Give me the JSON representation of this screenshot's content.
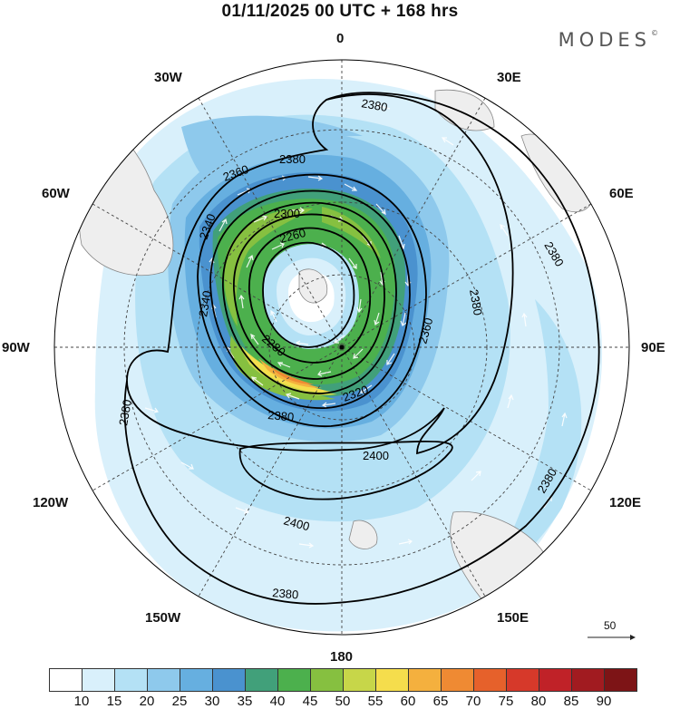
{
  "title": "01/11/2025  00 UTC  + 168 hrs",
  "brand": "MODES",
  "brand_mark": "©",
  "longitude_labels": {
    "lon_0": "0",
    "lon_30e": "30E",
    "lon_60e": "60E",
    "lon_90e": "90E",
    "lon_120e": "120E",
    "lon_150e": "150E",
    "lon_180": "180",
    "lon_150w": "150W",
    "lon_120w": "120W",
    "lon_90w": "90W",
    "lon_60w": "60W",
    "lon_30w": "30W"
  },
  "contour_labels": [
    "2260",
    "2280",
    "2300",
    "2320",
    "2340",
    "2360",
    "2380",
    "2400"
  ],
  "wind_reference": {
    "value": "50"
  },
  "colorbar": {
    "labels": [
      "10",
      "15",
      "20",
      "25",
      "30",
      "35",
      "40",
      "45",
      "50",
      "55",
      "60",
      "65",
      "70",
      "75",
      "80",
      "85",
      "90"
    ],
    "colors": [
      "#ffffff",
      "#d9f0fb",
      "#b4e1f5",
      "#8ec9ec",
      "#66afe0",
      "#4a92cf",
      "#41a07a",
      "#4cb04d",
      "#86c040",
      "#c7d649",
      "#f5dd4c",
      "#f4b03e",
      "#ef8a33",
      "#e6612b",
      "#d6392a",
      "#c02228",
      "#a11b20",
      "#7d1416"
    ]
  }
}
